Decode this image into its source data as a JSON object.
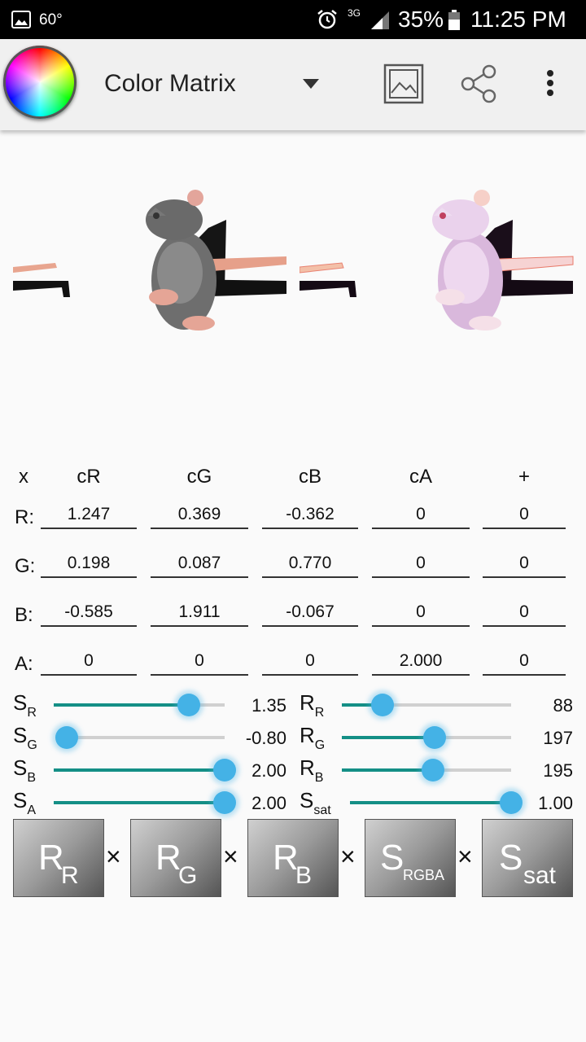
{
  "status_bar": {
    "temperature": "60°",
    "network": "3G",
    "battery": "35%",
    "time": "11:25 PM"
  },
  "app_bar": {
    "title": "Color Matrix"
  },
  "matrix": {
    "headers": [
      "x",
      "cR",
      "cG",
      "cB",
      "cA",
      "+"
    ],
    "rows": [
      {
        "label": "R:",
        "values": [
          "1.247",
          "0.369",
          "-0.362",
          "0",
          "0"
        ]
      },
      {
        "label": "G:",
        "values": [
          "0.198",
          "0.087",
          "0.770",
          "0",
          "0"
        ]
      },
      {
        "label": "B:",
        "values": [
          "-0.585",
          "1.911",
          "-0.067",
          "0",
          "0"
        ]
      },
      {
        "label": "A:",
        "values": [
          "0",
          "0",
          "0",
          "2.000",
          "0"
        ]
      }
    ]
  },
  "sliders": {
    "left": [
      {
        "symbol": "S",
        "sub": "R",
        "value": "1.35",
        "level": 0.79
      },
      {
        "symbol": "S",
        "sub": "G",
        "value": "-0.80",
        "level": 0.0
      },
      {
        "symbol": "S",
        "sub": "B",
        "value": "2.00",
        "level": 1.0
      },
      {
        "symbol": "S",
        "sub": "A",
        "value": "2.00",
        "level": 1.0
      }
    ],
    "right": [
      {
        "symbol": "R",
        "sub": "R",
        "value": "88",
        "level": 0.24
      },
      {
        "symbol": "R",
        "sub": "G",
        "value": "197",
        "level": 0.55
      },
      {
        "symbol": "R",
        "sub": "B",
        "value": "195",
        "level": 0.54
      },
      {
        "symbol": "S",
        "sub": "sat",
        "value": "1.00",
        "level": 1.0
      }
    ]
  },
  "operators": {
    "boxes": [
      {
        "main": "R",
        "sub": "R"
      },
      {
        "main": "R",
        "sub": "G"
      },
      {
        "main": "R",
        "sub": "B"
      },
      {
        "main": "S",
        "sub": "RGBA"
      },
      {
        "main": "S",
        "sub": "sat"
      }
    ],
    "times_symbol": "×"
  },
  "colors": {
    "accent": "#148f86",
    "thumb": "#44b2e6",
    "track": "#d0d0d0"
  }
}
